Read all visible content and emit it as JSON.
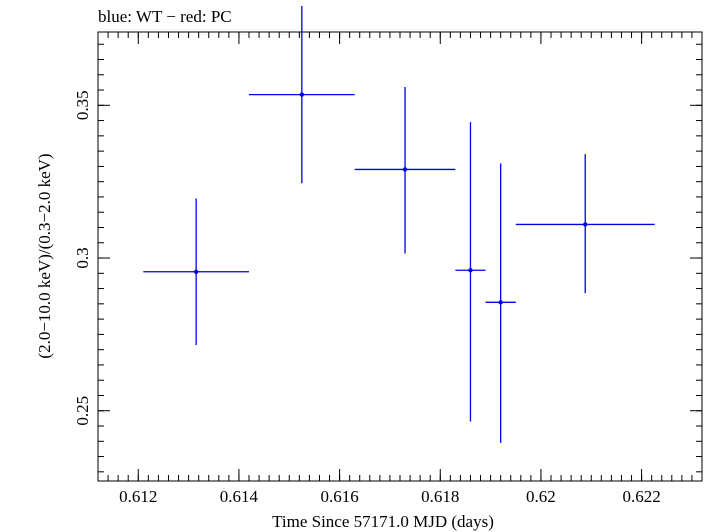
{
  "chart_data": {
    "type": "scatter",
    "title": "blue: WT − red: PC",
    "xlabel": "Time Since 57171.0 MJD (days)",
    "ylabel": "(2.0−10.0 keV)/(0.3−2.0 keV)",
    "xlim": [
      0.6112,
      0.6232
    ],
    "ylim": [
      0.227,
      0.374
    ],
    "x_ticks": [
      0.612,
      0.614,
      0.616,
      0.618,
      0.62,
      0.622
    ],
    "x_tick_labels": [
      "0.612",
      "0.614",
      "0.616",
      "0.618",
      "0.62",
      "0.622"
    ],
    "y_ticks": [
      0.25,
      0.3,
      0.35
    ],
    "y_tick_labels": [
      "0.25",
      "0.3",
      "0.35"
    ],
    "grid": false,
    "series": [
      {
        "name": "WT",
        "color": "#0000ee",
        "points": [
          {
            "x": 0.61315,
            "xerr": 0.00105,
            "y": 0.2955,
            "ylo": 0.2715,
            "yhi": 0.3195
          },
          {
            "x": 0.61525,
            "xerr": 0.00105,
            "y": 0.3535,
            "ylo": 0.3245,
            "yhi": 0.3825
          },
          {
            "x": 0.6173,
            "xerr": 0.001,
            "y": 0.329,
            "ylo": 0.3015,
            "yhi": 0.356
          },
          {
            "x": 0.6186,
            "xerr": 0.0003,
            "y": 0.296,
            "ylo": 0.2465,
            "yhi": 0.3445
          },
          {
            "x": 0.6192,
            "xerr": 0.0003,
            "y": 0.2855,
            "ylo": 0.2395,
            "yhi": 0.331
          },
          {
            "x": 0.62088,
            "xerr": 0.00138,
            "y": 0.311,
            "ylo": 0.2885,
            "yhi": 0.334
          }
        ]
      }
    ]
  }
}
